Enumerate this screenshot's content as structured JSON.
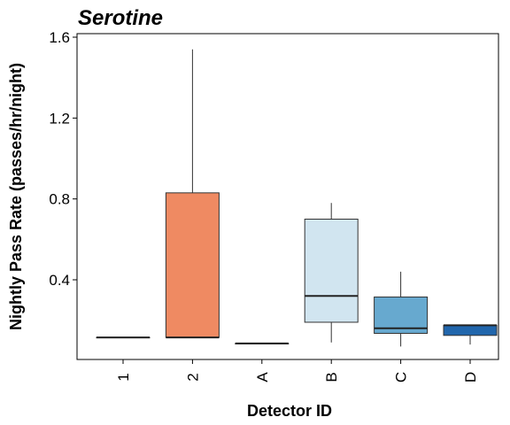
{
  "chart_data": {
    "type": "boxplot",
    "title": "Serotine",
    "xlabel": "Detector ID",
    "ylabel": "Nightly Pass Rate (passes/hr/night)",
    "ylim": [
      0,
      1.62
    ],
    "yticks": [
      "0.4",
      "0.8",
      "1.2",
      "1.6"
    ],
    "ytick_values": [
      0.4,
      0.8,
      1.2,
      1.6
    ],
    "grid": false,
    "legend": "none",
    "categories": [
      "1",
      "2",
      "A",
      "B",
      "C",
      "D"
    ],
    "boxes": [
      {
        "category": "1",
        "min": 0.115,
        "q1": 0.115,
        "median": 0.115,
        "q3": 0.115,
        "max": 0.115,
        "color": "#ffffff"
      },
      {
        "category": "2",
        "min": 0.115,
        "q1": 0.115,
        "median": 0.115,
        "q3": 0.83,
        "max": 1.54,
        "color": "#ef8a62"
      },
      {
        "category": "A",
        "min": 0.085,
        "q1": 0.085,
        "median": 0.085,
        "q3": 0.085,
        "max": 0.085,
        "color": "#f7f7f7"
      },
      {
        "category": "B",
        "min": 0.09,
        "q1": 0.19,
        "median": 0.32,
        "q3": 0.7,
        "max": 0.78,
        "color": "#d1e5f0"
      },
      {
        "category": "C",
        "min": 0.07,
        "q1": 0.135,
        "median": 0.16,
        "q3": 0.315,
        "max": 0.44,
        "color": "#67a9cf"
      },
      {
        "category": "D",
        "min": 0.08,
        "q1": 0.125,
        "median": 0.175,
        "q3": 0.175,
        "max": 0.175,
        "color": "#2166ac"
      }
    ]
  }
}
